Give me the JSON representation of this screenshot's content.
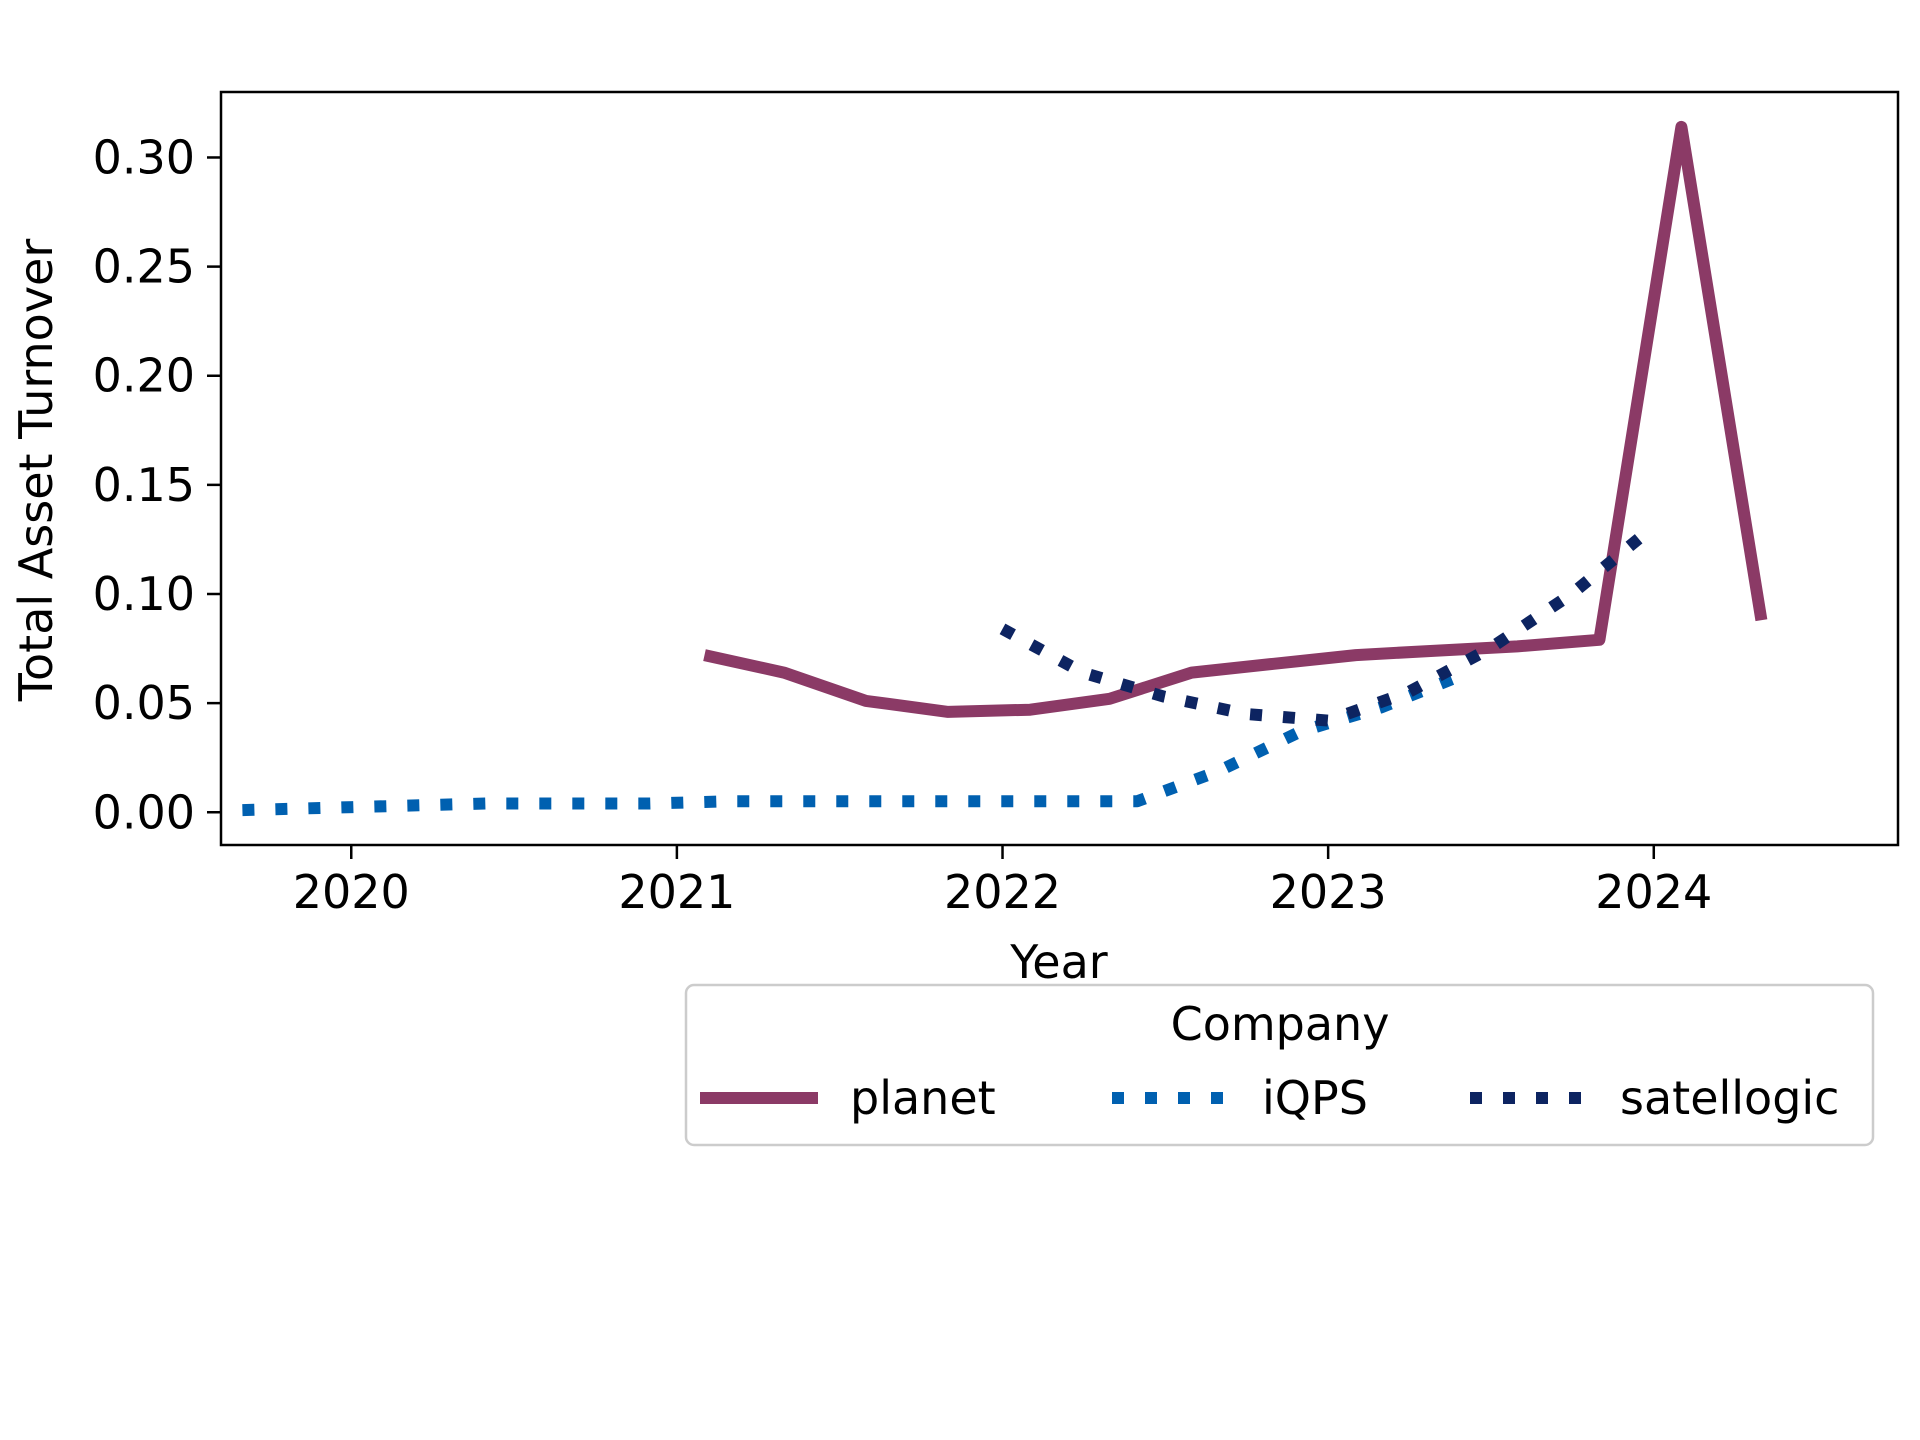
{
  "chart_data": {
    "type": "line",
    "xlabel": "Year",
    "ylabel": "Total Asset Turnover",
    "xlim": [
      2019.6,
      2024.75
    ],
    "ylim": [
      -0.015,
      0.33
    ],
    "xticks": [
      2020,
      2021,
      2022,
      2023,
      2024
    ],
    "xtick_labels": [
      "2020",
      "2021",
      "2022",
      "2023",
      "2024"
    ],
    "yticks": [
      0.0,
      0.05,
      0.1,
      0.15,
      0.2,
      0.25,
      0.3
    ],
    "ytick_labels": [
      "0.00",
      "0.05",
      "0.10",
      "0.15",
      "0.20",
      "0.25",
      "0.30"
    ],
    "grid": false,
    "legend": {
      "title": "Company",
      "placement": "below-right",
      "entries": [
        "planet",
        "iQPS",
        "satellogic"
      ]
    },
    "series": [
      {
        "name": "planet",
        "color": "#8b3a66",
        "style": "solid",
        "x": [
          "2021-02-01",
          "2021-05-01",
          "2021-08-01",
          "2021-11-01",
          "2022-02-01",
          "2022-05-01",
          "2022-08-01",
          "2022-11-01",
          "2023-02-01",
          "2023-05-01",
          "2023-08-01",
          "2023-11-01",
          "2024-02-01",
          "2024-05-01"
        ],
        "values": [
          0.072,
          0.064,
          0.051,
          0.046,
          0.047,
          0.052,
          0.064,
          0.068,
          0.072,
          0.074,
          0.076,
          0.079,
          0.314,
          0.088
        ]
      },
      {
        "name": "iQPS",
        "color": "#0060b0",
        "style": "dotted",
        "x": [
          "2019-09-01",
          "2019-12-01",
          "2020-03-01",
          "2020-06-01",
          "2020-09-01",
          "2020-12-01",
          "2021-03-01",
          "2021-06-01",
          "2021-09-01",
          "2021-12-01",
          "2022-03-01",
          "2022-06-01",
          "2022-09-01",
          "2022-12-01",
          "2023-03-01",
          "2023-06-01"
        ],
        "values": [
          0.001,
          0.002,
          0.003,
          0.004,
          0.004,
          0.004,
          0.005,
          0.005,
          0.005,
          0.005,
          0.005,
          0.005,
          0.019,
          0.037,
          0.048,
          0.063
        ]
      },
      {
        "name": "satellogic",
        "color": "#0d2461",
        "style": "dotted",
        "x": [
          "2022-01-01",
          "2022-04-01",
          "2022-07-01",
          "2022-10-01",
          "2023-01-01",
          "2023-04-01",
          "2023-07-01",
          "2023-10-01",
          "2024-01-01"
        ],
        "values": [
          0.084,
          0.064,
          0.053,
          0.045,
          0.042,
          0.055,
          0.075,
          0.1,
          0.131
        ]
      }
    ]
  }
}
